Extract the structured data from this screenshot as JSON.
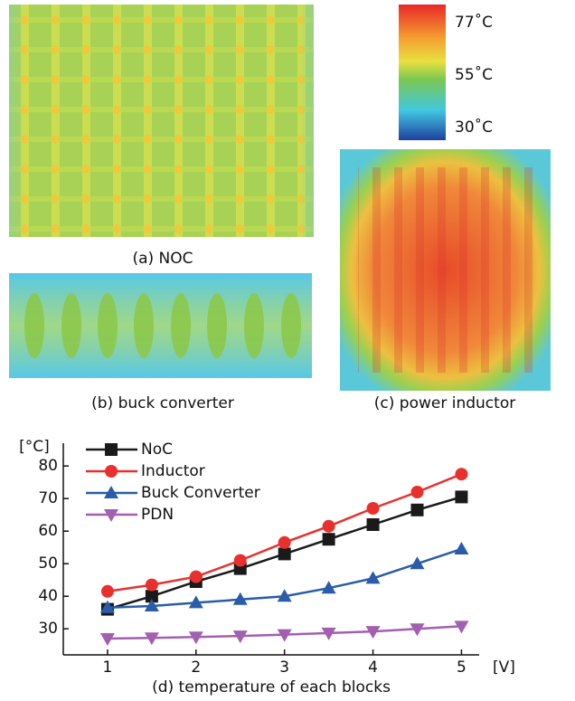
{
  "panels": [
    {
      "caption": "(a) NOC"
    },
    {
      "caption": "(b) buck converter"
    },
    {
      "caption": "(c) power inductor"
    }
  ],
  "colorbar": {
    "labels": [
      "77˚C",
      "55˚C",
      "30˚C"
    ]
  },
  "chart_data": {
    "type": "line",
    "title": "(d) temperature of each blocks",
    "y_label": "[°C]",
    "x_label": "[V]",
    "x": [
      1,
      1.5,
      2,
      2.5,
      3,
      3.5,
      4,
      4.5,
      5
    ],
    "xlim": [
      0.5,
      5.2
    ],
    "xticks": [
      1,
      2,
      3,
      4,
      5
    ],
    "ylim": [
      22,
      87
    ],
    "yticks": [
      30,
      40,
      50,
      60,
      70,
      80
    ],
    "legend": "upper left",
    "series": [
      {
        "name": "NoC",
        "color": "#1a1a1a",
        "marker": "square",
        "values": [
          36,
          40,
          44.5,
          48.5,
          53,
          57.5,
          62,
          66.5,
          70.5
        ]
      },
      {
        "name": "Inductor",
        "color": "#e8312f",
        "marker": "circle",
        "values": [
          41.5,
          43.5,
          46,
          51,
          56.5,
          61.5,
          67,
          72,
          77.5
        ]
      },
      {
        "name": "Buck Converter",
        "color": "#2a5caa",
        "marker": "triangle-up",
        "values": [
          36.5,
          37,
          38,
          39,
          40,
          42.5,
          45.5,
          50,
          54.5
        ]
      },
      {
        "name": "PDN",
        "color": "#a35fb0",
        "marker": "triangle-down",
        "values": [
          27,
          27.2,
          27.5,
          27.8,
          28.2,
          28.7,
          29.2,
          30,
          30.8
        ]
      }
    ]
  }
}
